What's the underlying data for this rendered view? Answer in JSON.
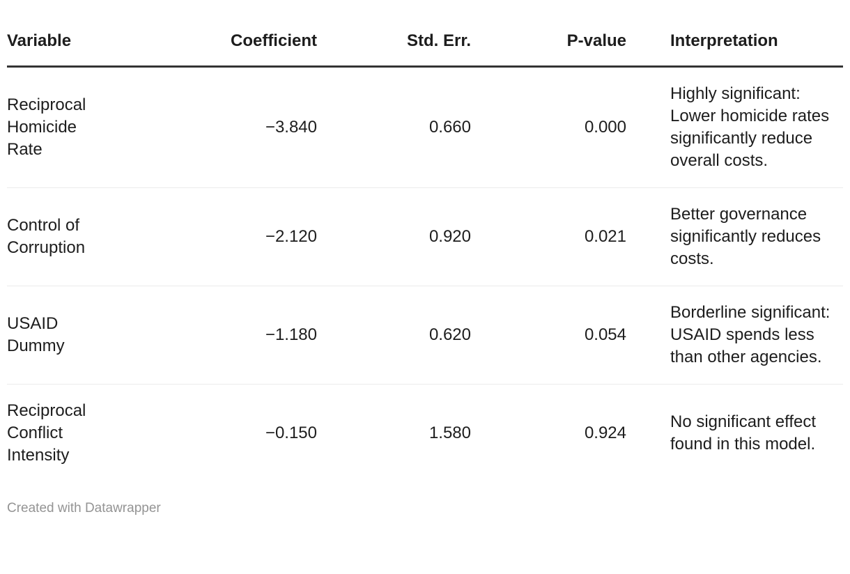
{
  "chart_data": {
    "type": "table",
    "columns": [
      "Variable",
      "Coefficient",
      "Std. Err.",
      "P-value",
      "Interpretation"
    ],
    "rows": [
      [
        "Reciprocal Homicide Rate",
        "−3.840",
        "0.660",
        "0.000",
        "Highly significant: Lower homicide rates significantly reduce overall costs."
      ],
      [
        "Control of Corruption",
        "−2.120",
        "0.920",
        "0.021",
        "Better governance significantly reduces costs."
      ],
      [
        "USAID Dummy",
        "−1.180",
        "0.620",
        "0.054",
        "Borderline significant: USAID spends less than other agencies."
      ],
      [
        "Reciprocal Conflict Intensity",
        "−0.150",
        "1.580",
        "0.924",
        "No significant effect found in this model."
      ]
    ],
    "title": "",
    "layout_hints": {
      "numeric_columns_right_aligned": true,
      "header_rule_color": "#333333",
      "row_separator_color": "#ebebeb"
    }
  },
  "footer": {
    "attribution": "Created with Datawrapper"
  },
  "colors": {
    "background": "#ffffff",
    "header_text": "#1d1d1d",
    "body_text": "#1d1d1d",
    "header_rule": "#333333",
    "row_separator": "#ebebeb",
    "attribution_text": "#949494"
  }
}
